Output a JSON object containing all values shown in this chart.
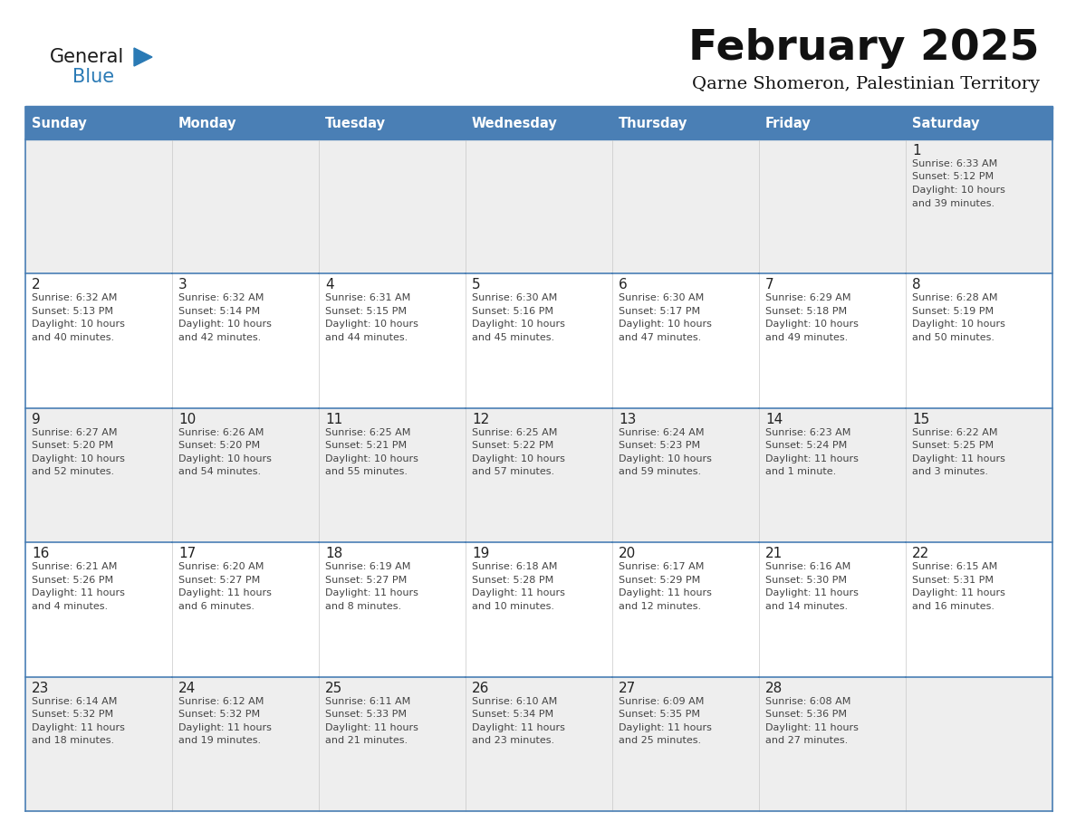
{
  "title": "February 2025",
  "subtitle": "Qarne Shomeron, Palestinian Territory",
  "days_of_week": [
    "Sunday",
    "Monday",
    "Tuesday",
    "Wednesday",
    "Thursday",
    "Friday",
    "Saturday"
  ],
  "header_bg": "#4a7fb5",
  "header_text": "#ffffff",
  "cell_bg_light": "#eeeeee",
  "cell_bg_white": "#ffffff",
  "border_color": "#4a7fb5",
  "day_num_color": "#222222",
  "info_color": "#444444",
  "title_color": "#111111",
  "subtitle_color": "#111111",
  "logo_general_color": "#1a1a1a",
  "logo_blue_color": "#2a7ab5",
  "weeks": [
    {
      "days": [
        {
          "date": null,
          "sunrise": null,
          "sunset": null,
          "daylight": null
        },
        {
          "date": null,
          "sunrise": null,
          "sunset": null,
          "daylight": null
        },
        {
          "date": null,
          "sunrise": null,
          "sunset": null,
          "daylight": null
        },
        {
          "date": null,
          "sunrise": null,
          "sunset": null,
          "daylight": null
        },
        {
          "date": null,
          "sunrise": null,
          "sunset": null,
          "daylight": null
        },
        {
          "date": null,
          "sunrise": null,
          "sunset": null,
          "daylight": null
        },
        {
          "date": 1,
          "sunrise": "6:33 AM",
          "sunset": "5:12 PM",
          "daylight": "10 hours\nand 39 minutes."
        }
      ]
    },
    {
      "days": [
        {
          "date": 2,
          "sunrise": "6:32 AM",
          "sunset": "5:13 PM",
          "daylight": "10 hours\nand 40 minutes."
        },
        {
          "date": 3,
          "sunrise": "6:32 AM",
          "sunset": "5:14 PM",
          "daylight": "10 hours\nand 42 minutes."
        },
        {
          "date": 4,
          "sunrise": "6:31 AM",
          "sunset": "5:15 PM",
          "daylight": "10 hours\nand 44 minutes."
        },
        {
          "date": 5,
          "sunrise": "6:30 AM",
          "sunset": "5:16 PM",
          "daylight": "10 hours\nand 45 minutes."
        },
        {
          "date": 6,
          "sunrise": "6:30 AM",
          "sunset": "5:17 PM",
          "daylight": "10 hours\nand 47 minutes."
        },
        {
          "date": 7,
          "sunrise": "6:29 AM",
          "sunset": "5:18 PM",
          "daylight": "10 hours\nand 49 minutes."
        },
        {
          "date": 8,
          "sunrise": "6:28 AM",
          "sunset": "5:19 PM",
          "daylight": "10 hours\nand 50 minutes."
        }
      ]
    },
    {
      "days": [
        {
          "date": 9,
          "sunrise": "6:27 AM",
          "sunset": "5:20 PM",
          "daylight": "10 hours\nand 52 minutes."
        },
        {
          "date": 10,
          "sunrise": "6:26 AM",
          "sunset": "5:20 PM",
          "daylight": "10 hours\nand 54 minutes."
        },
        {
          "date": 11,
          "sunrise": "6:25 AM",
          "sunset": "5:21 PM",
          "daylight": "10 hours\nand 55 minutes."
        },
        {
          "date": 12,
          "sunrise": "6:25 AM",
          "sunset": "5:22 PM",
          "daylight": "10 hours\nand 57 minutes."
        },
        {
          "date": 13,
          "sunrise": "6:24 AM",
          "sunset": "5:23 PM",
          "daylight": "10 hours\nand 59 minutes."
        },
        {
          "date": 14,
          "sunrise": "6:23 AM",
          "sunset": "5:24 PM",
          "daylight": "11 hours\nand 1 minute."
        },
        {
          "date": 15,
          "sunrise": "6:22 AM",
          "sunset": "5:25 PM",
          "daylight": "11 hours\nand 3 minutes."
        }
      ]
    },
    {
      "days": [
        {
          "date": 16,
          "sunrise": "6:21 AM",
          "sunset": "5:26 PM",
          "daylight": "11 hours\nand 4 minutes."
        },
        {
          "date": 17,
          "sunrise": "6:20 AM",
          "sunset": "5:27 PM",
          "daylight": "11 hours\nand 6 minutes."
        },
        {
          "date": 18,
          "sunrise": "6:19 AM",
          "sunset": "5:27 PM",
          "daylight": "11 hours\nand 8 minutes."
        },
        {
          "date": 19,
          "sunrise": "6:18 AM",
          "sunset": "5:28 PM",
          "daylight": "11 hours\nand 10 minutes."
        },
        {
          "date": 20,
          "sunrise": "6:17 AM",
          "sunset": "5:29 PM",
          "daylight": "11 hours\nand 12 minutes."
        },
        {
          "date": 21,
          "sunrise": "6:16 AM",
          "sunset": "5:30 PM",
          "daylight": "11 hours\nand 14 minutes."
        },
        {
          "date": 22,
          "sunrise": "6:15 AM",
          "sunset": "5:31 PM",
          "daylight": "11 hours\nand 16 minutes."
        }
      ]
    },
    {
      "days": [
        {
          "date": 23,
          "sunrise": "6:14 AM",
          "sunset": "5:32 PM",
          "daylight": "11 hours\nand 18 minutes."
        },
        {
          "date": 24,
          "sunrise": "6:12 AM",
          "sunset": "5:32 PM",
          "daylight": "11 hours\nand 19 minutes."
        },
        {
          "date": 25,
          "sunrise": "6:11 AM",
          "sunset": "5:33 PM",
          "daylight": "11 hours\nand 21 minutes."
        },
        {
          "date": 26,
          "sunrise": "6:10 AM",
          "sunset": "5:34 PM",
          "daylight": "11 hours\nand 23 minutes."
        },
        {
          "date": 27,
          "sunrise": "6:09 AM",
          "sunset": "5:35 PM",
          "daylight": "11 hours\nand 25 minutes."
        },
        {
          "date": 28,
          "sunrise": "6:08 AM",
          "sunset": "5:36 PM",
          "daylight": "11 hours\nand 27 minutes."
        },
        {
          "date": null,
          "sunrise": null,
          "sunset": null,
          "daylight": null
        }
      ]
    }
  ]
}
